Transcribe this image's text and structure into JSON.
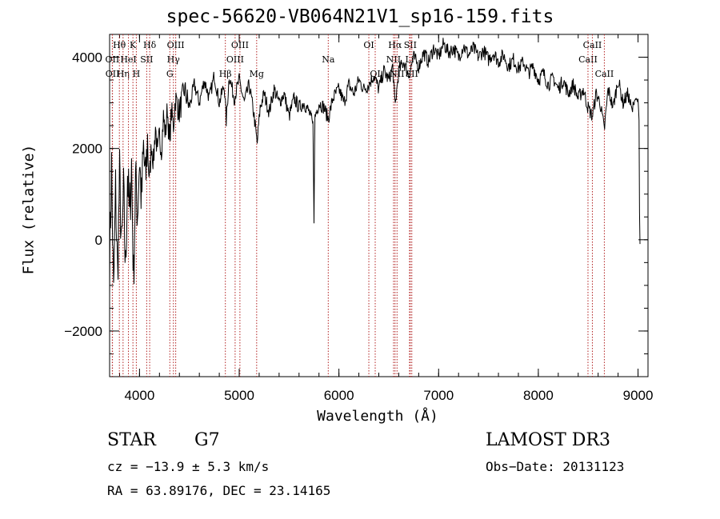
{
  "chart_data": {
    "type": "line",
    "title": "spec-56620-VB064N21V1_sp16-159.fits",
    "xlabel": "Wavelength (Å)",
    "ylabel": "Flux (relative)",
    "xlim": [
      3700,
      9100
    ],
    "ylim": [
      -3000,
      4500
    ],
    "x_ticks": [
      4000,
      5000,
      6000,
      7000,
      8000,
      9000
    ],
    "y_ticks": [
      -2000,
      0,
      2000,
      4000
    ],
    "x_minor_step": 200,
    "y_minor_step": 500,
    "spectrum_points": [
      [
        3700,
        -500
      ],
      [
        3720,
        1600
      ],
      [
        3740,
        -1300
      ],
      [
        3760,
        1100
      ],
      [
        3780,
        -800
      ],
      [
        3800,
        1400
      ],
      [
        3820,
        -300
      ],
      [
        3840,
        1000
      ],
      [
        3860,
        -700
      ],
      [
        3880,
        1500
      ],
      [
        3900,
        400
      ],
      [
        3920,
        1700
      ],
      [
        3940,
        -900
      ],
      [
        3960,
        1300
      ],
      [
        3980,
        600
      ],
      [
        4000,
        1800
      ],
      [
        4020,
        800
      ],
      [
        4040,
        2000
      ],
      [
        4060,
        1200
      ],
      [
        4080,
        2200
      ],
      [
        4100,
        1300
      ],
      [
        4120,
        2100
      ],
      [
        4140,
        1700
      ],
      [
        4160,
        2500
      ],
      [
        4180,
        1800
      ],
      [
        4200,
        2300
      ],
      [
        4220,
        2000
      ],
      [
        4240,
        2700
      ],
      [
        4260,
        2300
      ],
      [
        4280,
        2900
      ],
      [
        4300,
        2100
      ],
      [
        4320,
        2800
      ],
      [
        4340,
        2500
      ],
      [
        4360,
        3100
      ],
      [
        4400,
        2800
      ],
      [
        4450,
        3300
      ],
      [
        4500,
        2900
      ],
      [
        4550,
        3400
      ],
      [
        4600,
        3000
      ],
      [
        4650,
        3500
      ],
      [
        4700,
        3100
      ],
      [
        4750,
        3600
      ],
      [
        4800,
        3000
      ],
      [
        4850,
        3400
      ],
      [
        4870,
        2600
      ],
      [
        4900,
        3600
      ],
      [
        4950,
        3100
      ],
      [
        5000,
        3500
      ],
      [
        5050,
        3000
      ],
      [
        5100,
        3400
      ],
      [
        5150,
        2700
      ],
      [
        5180,
        2100
      ],
      [
        5210,
        2900
      ],
      [
        5250,
        3200
      ],
      [
        5300,
        2800
      ],
      [
        5350,
        3300
      ],
      [
        5400,
        3000
      ],
      [
        5450,
        3200
      ],
      [
        5500,
        2700
      ],
      [
        5550,
        3100
      ],
      [
        5600,
        2900
      ],
      [
        5650,
        3000
      ],
      [
        5700,
        2800
      ],
      [
        5740,
        2500
      ],
      [
        5750,
        500
      ],
      [
        5760,
        2700
      ],
      [
        5800,
        3000
      ],
      [
        5850,
        2900
      ],
      [
        5893,
        2650
      ],
      [
        5940,
        3100
      ],
      [
        6000,
        3300
      ],
      [
        6050,
        3000
      ],
      [
        6100,
        3400
      ],
      [
        6150,
        3200
      ],
      [
        6200,
        3500
      ],
      [
        6250,
        3300
      ],
      [
        6300,
        3400
      ],
      [
        6350,
        3600
      ],
      [
        6400,
        3300
      ],
      [
        6450,
        3700
      ],
      [
        6500,
        3500
      ],
      [
        6540,
        3800
      ],
      [
        6563,
        2900
      ],
      [
        6600,
        3700
      ],
      [
        6650,
        3900
      ],
      [
        6700,
        3600
      ],
      [
        6750,
        4000
      ],
      [
        6800,
        3800
      ],
      [
        6850,
        4100
      ],
      [
        6900,
        3900
      ],
      [
        6950,
        4200
      ],
      [
        7000,
        4000
      ],
      [
        7050,
        4300
      ],
      [
        7100,
        4100
      ],
      [
        7150,
        4200
      ],
      [
        7200,
        4000
      ],
      [
        7250,
        4250
      ],
      [
        7300,
        4050
      ],
      [
        7350,
        4200
      ],
      [
        7400,
        4000
      ],
      [
        7450,
        4150
      ],
      [
        7500,
        3950
      ],
      [
        7550,
        4100
      ],
      [
        7600,
        3900
      ],
      [
        7650,
        4050
      ],
      [
        7700,
        3800
      ],
      [
        7750,
        3950
      ],
      [
        7800,
        3750
      ],
      [
        7850,
        3900
      ],
      [
        7900,
        3650
      ],
      [
        7950,
        3800
      ],
      [
        8000,
        3500
      ],
      [
        8050,
        3650
      ],
      [
        8100,
        3400
      ],
      [
        8150,
        3550
      ],
      [
        8200,
        3300
      ],
      [
        8250,
        3500
      ],
      [
        8300,
        3200
      ],
      [
        8350,
        3400
      ],
      [
        8400,
        3100
      ],
      [
        8450,
        3300
      ],
      [
        8498,
        2900
      ],
      [
        8542,
        2700
      ],
      [
        8580,
        3200
      ],
      [
        8620,
        3000
      ],
      [
        8662,
        2400
      ],
      [
        8700,
        3300
      ],
      [
        8750,
        2900
      ],
      [
        8800,
        3500
      ],
      [
        8850,
        3000
      ],
      [
        8900,
        3200
      ],
      [
        8940,
        2800
      ],
      [
        8970,
        3100
      ],
      [
        9000,
        3050
      ],
      [
        9010,
        2600
      ],
      [
        9015,
        600
      ],
      [
        9020,
        -100
      ]
    ],
    "line_markers": [
      {
        "name": "OII",
        "wavelength": 3727,
        "row": 1
      },
      {
        "name": "OII",
        "wavelength": 3729,
        "row": 2
      },
      {
        "name": "Hθ",
        "wavelength": 3798,
        "row": 0
      },
      {
        "name": "Hη",
        "wavelength": 3835,
        "row": 2
      },
      {
        "name": "HeI",
        "wavelength": 3889,
        "row": 1
      },
      {
        "name": "K",
        "wavelength": 3934,
        "row": 0
      },
      {
        "name": "H",
        "wavelength": 3968,
        "row": 2
      },
      {
        "name": "SII",
        "wavelength": 4072,
        "row": 1
      },
      {
        "name": "Hδ",
        "wavelength": 4102,
        "row": 0
      },
      {
        "name": "G",
        "wavelength": 4304,
        "row": 2
      },
      {
        "name": "Hγ",
        "wavelength": 4340,
        "row": 1
      },
      {
        "name": "OIII",
        "wavelength": 4363,
        "row": 0
      },
      {
        "name": "Hβ",
        "wavelength": 4861,
        "row": 2
      },
      {
        "name": "OIII",
        "wavelength": 4959,
        "row": 1
      },
      {
        "name": "OIII",
        "wavelength": 5007,
        "row": 0
      },
      {
        "name": "Mg",
        "wavelength": 5175,
        "row": 2
      },
      {
        "name": "Na",
        "wavelength": 5893,
        "row": 1
      },
      {
        "name": "OI",
        "wavelength": 6300,
        "row": 0
      },
      {
        "name": "OI",
        "wavelength": 6364,
        "row": 2
      },
      {
        "name": "NII",
        "wavelength": 6548,
        "row": 1
      },
      {
        "name": "Hα",
        "wavelength": 6563,
        "row": 0
      },
      {
        "name": "NII",
        "wavelength": 6583,
        "row": 2
      },
      {
        "name": "Li",
        "wavelength": 6708,
        "row": 1
      },
      {
        "name": "SII",
        "wavelength": 6716,
        "row": 0
      },
      {
        "name": "SII",
        "wavelength": 6731,
        "row": 2
      },
      {
        "name": "CaII",
        "wavelength": 8498,
        "row": 1
      },
      {
        "name": "CaII",
        "wavelength": 8542,
        "row": 0
      },
      {
        "name": "CaII",
        "wavelength": 8662,
        "row": 2
      }
    ],
    "marker_color": "#b22222",
    "line_color": "#000000"
  },
  "info": {
    "object_class": "STAR",
    "subclass": "G7",
    "survey": "LAMOST DR3",
    "cz": "cz = −13.9 ± 5.3 km/s",
    "obs_date": "Obs−Date: 20131123",
    "ra_dec": "RA =  63.89176, DEC =  23.14165"
  }
}
